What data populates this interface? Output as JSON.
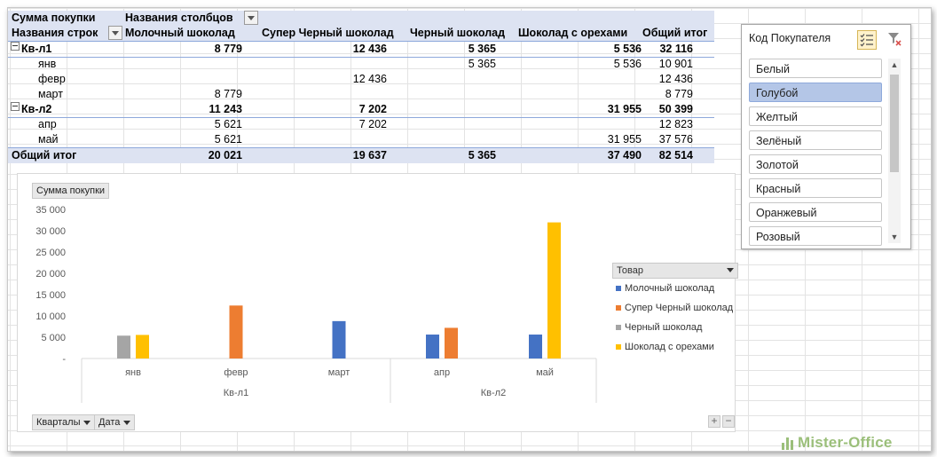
{
  "pivot": {
    "value_field": "Сумма покупки",
    "col_field": "Названия столбцов",
    "row_field": "Названия строк",
    "columns": [
      "Молочный шоколад",
      "Супер Черный шоколад",
      "Черный шоколад",
      "Шоколад с орехами",
      "Общий итог"
    ],
    "groups": [
      {
        "label": "Кв-л1",
        "values": [
          "8 779",
          "12 436",
          "5 365",
          "5 536",
          "32 116"
        ],
        "rows": [
          {
            "label": "янв",
            "values": [
              "",
              "",
              "5 365",
              "5 536",
              "10 901"
            ]
          },
          {
            "label": "февр",
            "values": [
              "",
              "12 436",
              "",
              "",
              "12 436"
            ]
          },
          {
            "label": "март",
            "values": [
              "8 779",
              "",
              "",
              "",
              "8 779"
            ]
          }
        ]
      },
      {
        "label": "Кв-л2",
        "values": [
          "11 243",
          "7 202",
          "",
          "31 955",
          "50 399"
        ],
        "rows": [
          {
            "label": "апр",
            "values": [
              "5 621",
              "7 202",
              "",
              "",
              "12 823"
            ]
          },
          {
            "label": "май",
            "values": [
              "5 621",
              "",
              "",
              "31 955",
              "37 576"
            ]
          }
        ]
      }
    ],
    "grand_total": {
      "label": "Общий итог",
      "values": [
        "20 021",
        "19 637",
        "5 365",
        "37 490",
        "82 514"
      ]
    }
  },
  "chart_data": {
    "type": "bar",
    "value_field_button": "Сумма покупки",
    "categories": [
      "янв",
      "февр",
      "март",
      "апр",
      "май"
    ],
    "groups": [
      {
        "label": "Кв-л1",
        "categories": [
          "янв",
          "февр",
          "март"
        ]
      },
      {
        "label": "Кв-л2",
        "categories": [
          "апр",
          "май"
        ]
      }
    ],
    "series": [
      {
        "name": "Молочный шоколад",
        "color": "#4472c4",
        "values": [
          null,
          null,
          8779,
          5621,
          5621
        ]
      },
      {
        "name": "Супер Черный шоколад",
        "color": "#ed7d31",
        "values": [
          null,
          12436,
          null,
          7202,
          null
        ]
      },
      {
        "name": "Черный шоколад",
        "color": "#a5a5a5",
        "values": [
          5365,
          null,
          null,
          null,
          null
        ]
      },
      {
        "name": "Шоколад с орехами",
        "color": "#ffc000",
        "values": [
          5536,
          null,
          null,
          null,
          31955
        ]
      }
    ],
    "y_ticks": [
      "35 000",
      "30 000",
      "25 000",
      "20 000",
      "15 000",
      "10 000",
      "5 000",
      "-"
    ],
    "ylim": [
      0,
      35000
    ],
    "grid": false,
    "legend_title": "Товар",
    "legend_placement": "right",
    "axis_buttons": [
      "Кварталы",
      "Дата"
    ],
    "zoom_buttons": [
      "+",
      "−"
    ]
  },
  "slicer": {
    "title": "Код Покупателя",
    "multiselect_icon": "multiselect-icon",
    "clear_filter_icon": "clear-filter-icon",
    "items": [
      {
        "label": "Белый",
        "selected": false
      },
      {
        "label": "Голубой",
        "selected": true
      },
      {
        "label": "Желтый",
        "selected": false
      },
      {
        "label": "Зелёный",
        "selected": false
      },
      {
        "label": "Золотой",
        "selected": false
      },
      {
        "label": "Красный",
        "selected": false
      },
      {
        "label": "Оранжевый",
        "selected": false
      },
      {
        "label": "Розовый",
        "selected": false
      }
    ]
  },
  "watermark": "Mister-Office"
}
